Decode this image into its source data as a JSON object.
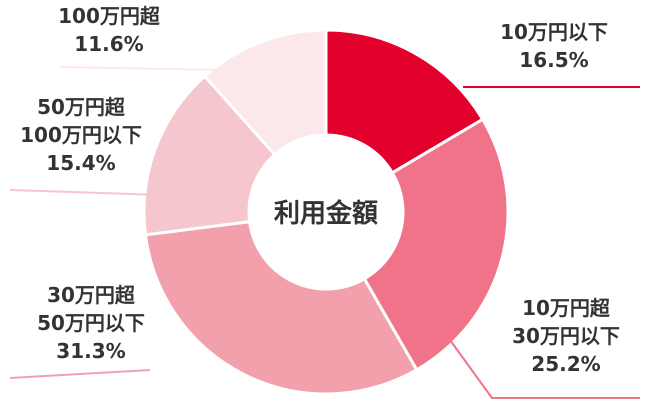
{
  "chart_data": {
    "type": "pie",
    "title": "利用金額",
    "categories": [
      "10万円以下",
      "10万円超30万円以下",
      "30万円超50万円以下",
      "50万円超100万円以下",
      "100万円超"
    ],
    "values": [
      16.5,
      25.2,
      31.3,
      15.4,
      11.6
    ],
    "unit": "%",
    "colors": [
      "#e2002c",
      "#f17389",
      "#f2a0ac",
      "#f5c6cd",
      "#fce7eb"
    ],
    "labels": [
      {
        "lines": [
          "10万円以下",
          "16.5%"
        ]
      },
      {
        "lines": [
          "10万円超",
          "30万円以下",
          "25.2%"
        ]
      },
      {
        "lines": [
          "30万円超",
          "50万円以下",
          "31.3%"
        ]
      },
      {
        "lines": [
          "50万円超",
          "100万円以下",
          "15.4%"
        ]
      },
      {
        "lines": [
          "100万円超",
          "11.6%"
        ]
      }
    ]
  }
}
